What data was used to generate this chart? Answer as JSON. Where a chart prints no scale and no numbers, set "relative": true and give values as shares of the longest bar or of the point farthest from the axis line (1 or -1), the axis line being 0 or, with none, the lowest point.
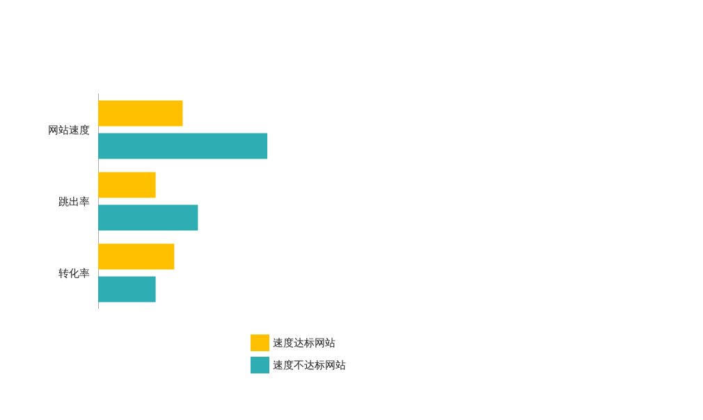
{
  "chart_data": {
    "type": "bar",
    "orientation": "horizontal",
    "relative": true,
    "categories": [
      "网站速度",
      "跳出率",
      "转化率"
    ],
    "series": [
      {
        "name": "速度达标网站",
        "color": "#ffc000",
        "values": [
          0.5,
          0.34,
          0.45
        ]
      },
      {
        "name": "速度不达标网站",
        "color": "#2eaeb3",
        "values": [
          1,
          0.59,
          0.34
        ]
      }
    ],
    "legend": "bottom"
  }
}
